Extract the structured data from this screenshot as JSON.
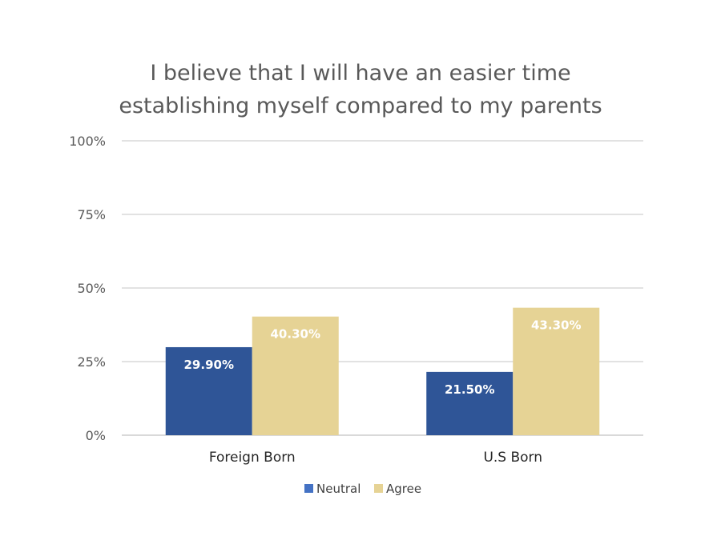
{
  "chart_data": {
    "type": "bar",
    "title": [
      "I believe that I will have an easier time",
      "establishing myself compared to my parents"
    ],
    "categories": [
      "Foreign Born",
      "U.S Born"
    ],
    "series": [
      {
        "name": "Neutral",
        "values": [
          29.9,
          21.5
        ],
        "labels": [
          "29.90%",
          "21.50%"
        ],
        "color": "#2F5597",
        "legend_color": "#4472C4"
      },
      {
        "name": "Agree",
        "values": [
          40.3,
          43.3
        ],
        "labels": [
          "40.30%",
          "43.30%"
        ],
        "color": "#E6D395",
        "legend_color": "#E6D395"
      }
    ],
    "ylim": [
      0,
      100
    ],
    "yticks": [
      0,
      25,
      50,
      75,
      100
    ],
    "ytick_labels": [
      "0%",
      "25%",
      "50%",
      "75%",
      "100%"
    ],
    "xlabel": "",
    "ylabel": "",
    "grid": true,
    "legend_position": "bottom"
  }
}
